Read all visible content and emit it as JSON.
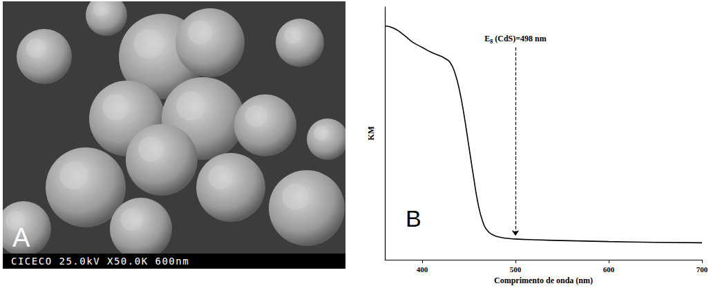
{
  "chart_data": {
    "type": "line",
    "panel_label": "B",
    "x_label": "Comprimento de onda (nm)",
    "y_label": "KM",
    "x": [
      360,
      370,
      380,
      390,
      400,
      410,
      420,
      425,
      430,
      435,
      440,
      445,
      450,
      455,
      460,
      465,
      470,
      475,
      480,
      490,
      500,
      520,
      550,
      600,
      650,
      700
    ],
    "values": [
      0.925,
      0.915,
      0.89,
      0.86,
      0.84,
      0.82,
      0.805,
      0.795,
      0.78,
      0.74,
      0.67,
      0.57,
      0.45,
      0.33,
      0.22,
      0.15,
      0.115,
      0.1,
      0.092,
      0.085,
      0.082,
      0.079,
      0.076,
      0.072,
      0.069,
      0.067
    ],
    "color": "#000000",
    "xlim": [
      360,
      700
    ],
    "xticks": [
      400,
      500,
      600,
      700
    ],
    "ylim": [
      0,
      1
    ],
    "tick_labels": "x",
    "grid": false,
    "annotation": {
      "text": "Eg (CdS)=498 nm",
      "x": 500
    }
  },
  "image_panel": {
    "label": "A",
    "caption": "CICECO 25.0kV X50.0K 600nm"
  }
}
